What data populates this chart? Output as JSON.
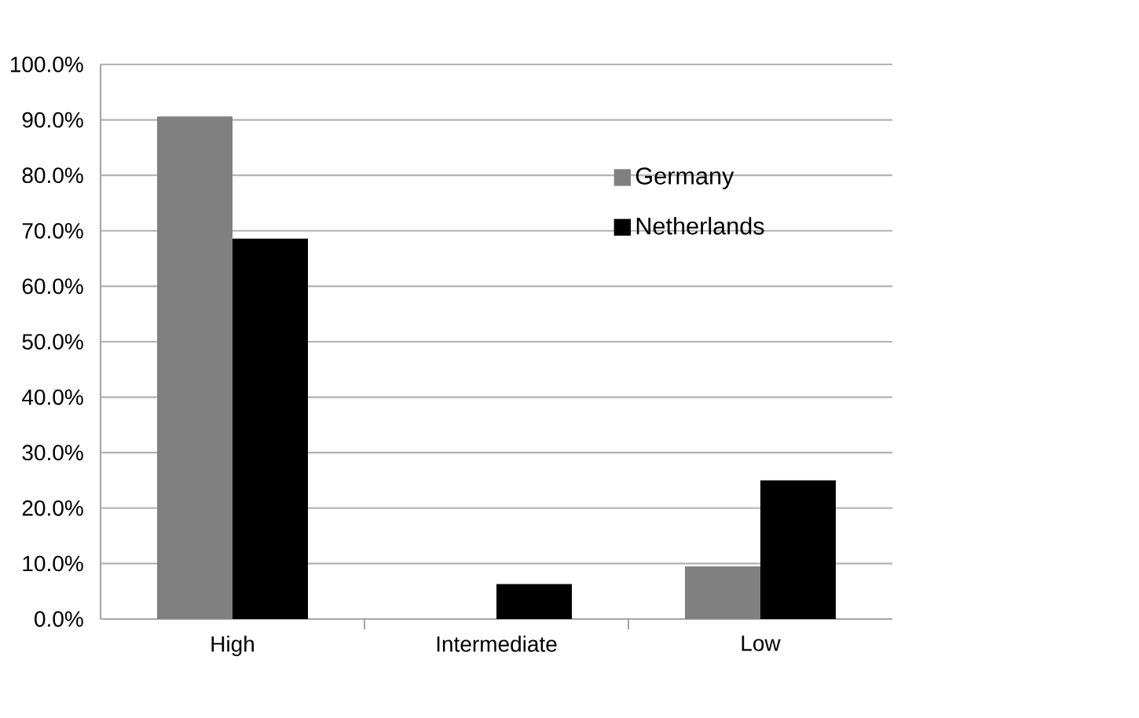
{
  "chart_data": {
    "type": "bar",
    "categories": [
      "High",
      "Intermediate",
      "Low"
    ],
    "series": [
      {
        "name": "Germany",
        "color": "#808080",
        "values": [
          90.6,
          0,
          9.5
        ]
      },
      {
        "name": "Netherlands",
        "color": "#000000",
        "values": [
          68.6,
          6.3,
          25.0
        ]
      }
    ],
    "ylim": [
      0,
      100
    ],
    "yticks": [
      {
        "value": 0,
        "label": "0.0%"
      },
      {
        "value": 10,
        "label": "10.0%"
      },
      {
        "value": 20,
        "label": "20.0%"
      },
      {
        "value": 30,
        "label": "30.0%"
      },
      {
        "value": 40,
        "label": "40.0%"
      },
      {
        "value": 50,
        "label": "50.0%"
      },
      {
        "value": 60,
        "label": "60.0%"
      },
      {
        "value": 70,
        "label": "70.0%"
      },
      {
        "value": 80,
        "label": "80.0%"
      },
      {
        "value": 90,
        "label": "90.0%"
      },
      {
        "value": 100,
        "label": "100.0%"
      }
    ],
    "grid": "y",
    "legend": "right"
  }
}
